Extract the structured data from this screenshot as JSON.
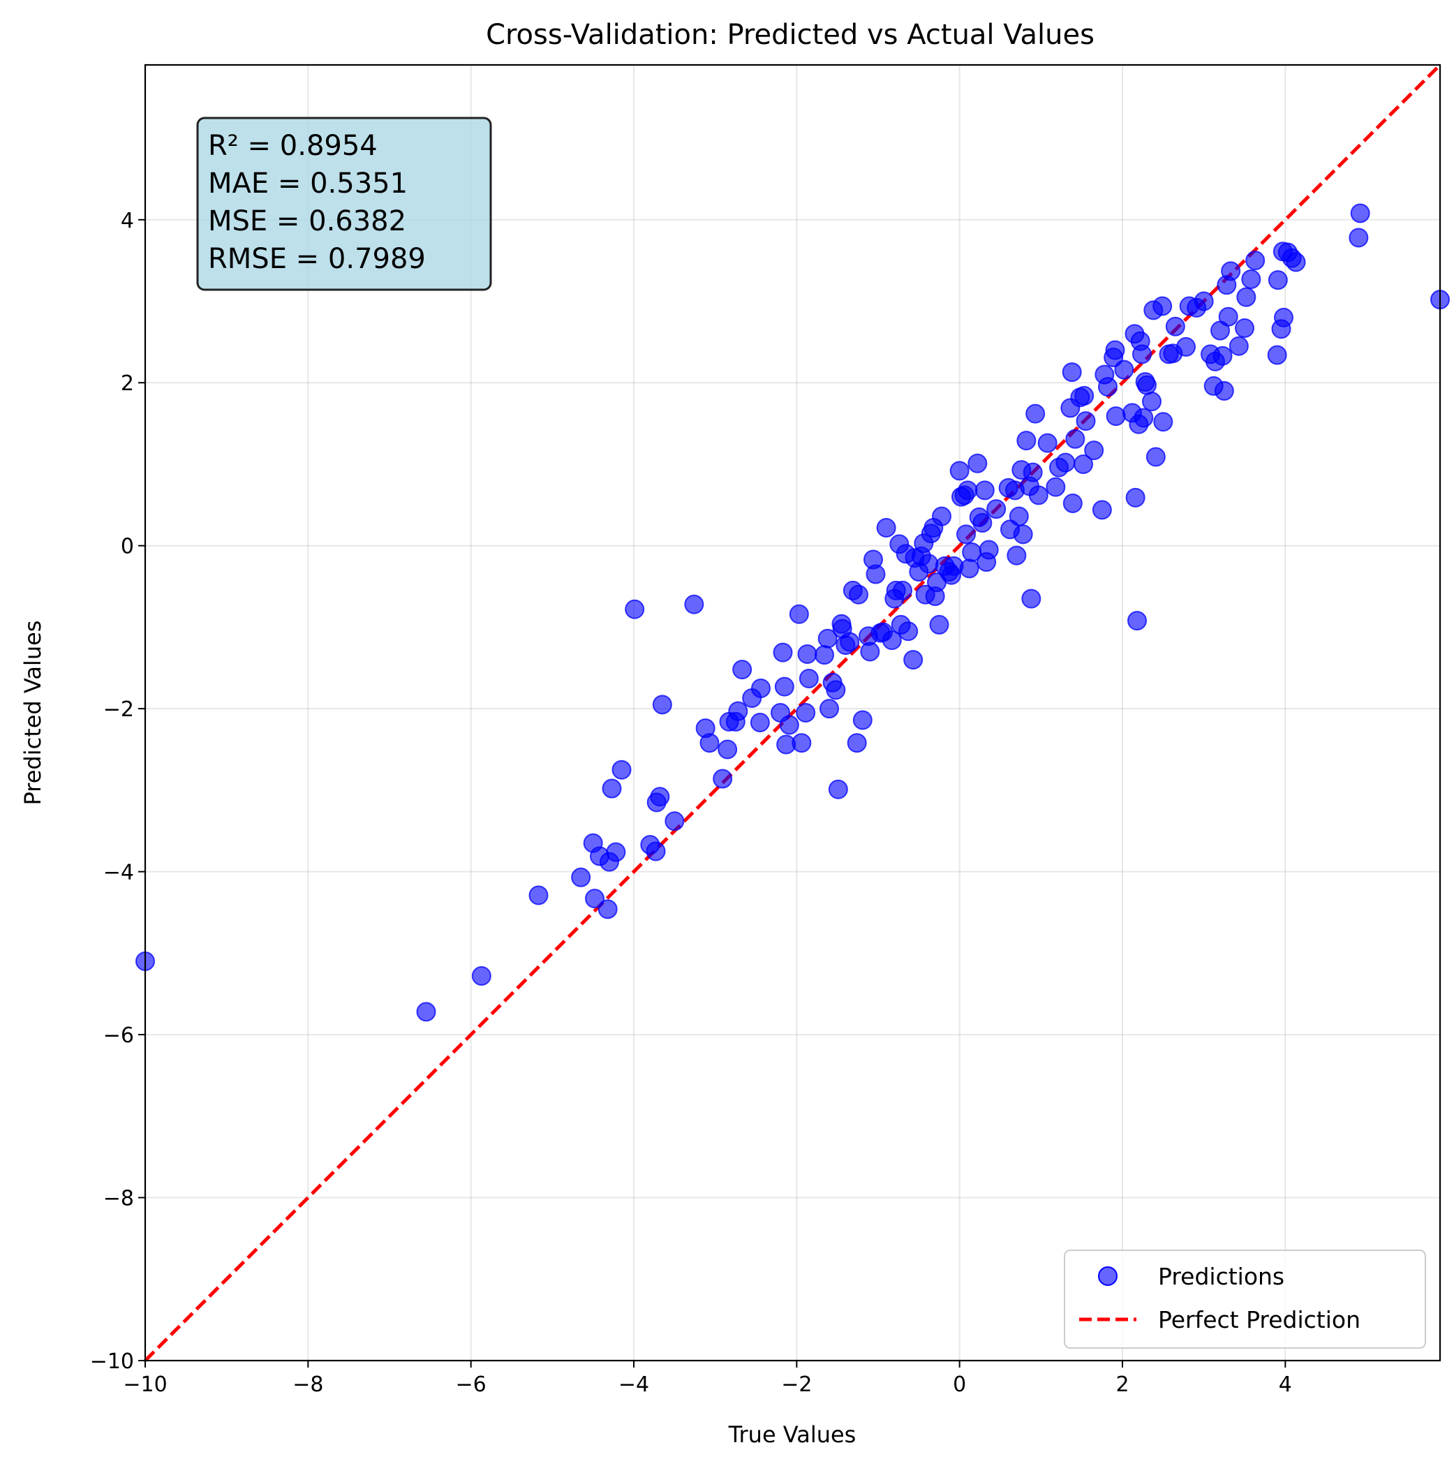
{
  "chart_data": {
    "type": "scatter",
    "title": "Cross-Validation: Predicted vs Actual Values",
    "xlabel": "True Values",
    "ylabel": "Predicted Values",
    "xlim": [
      -10,
      5.9
    ],
    "ylim": [
      -10,
      5.9
    ],
    "xticks": [
      -10,
      -8,
      -6,
      -4,
      -2,
      0,
      2,
      4
    ],
    "yticks": [
      -10,
      -8,
      -6,
      -4,
      -2,
      0,
      2,
      4
    ],
    "x_tick_labels": [
      "−10",
      "−8",
      "−6",
      "−4",
      "−2",
      "0",
      "2",
      "4"
    ],
    "y_tick_labels": [
      "−10",
      "−8",
      "−6",
      "−4",
      "−2",
      "0",
      "2",
      "4"
    ],
    "grid": true,
    "legend_position": "lower-right",
    "stats_box": {
      "lines": [
        "R² = 0.8954",
        "MAE = 0.5351",
        "MSE = 0.6382",
        "RMSE = 0.7989"
      ],
      "background_color": "#add8e6"
    },
    "series": [
      {
        "name": "Predictions",
        "kind": "scatter",
        "color": "#0000ff",
        "alpha": 0.6,
        "points": [
          [
            -10.0,
            -5.1
          ],
          [
            -6.55,
            -5.72
          ],
          [
            -5.87,
            -5.28
          ],
          [
            -5.17,
            -4.29
          ],
          [
            -4.65,
            -4.07
          ],
          [
            -4.5,
            -3.65
          ],
          [
            -4.48,
            -4.33
          ],
          [
            -4.42,
            -3.81
          ],
          [
            -4.32,
            -4.46
          ],
          [
            -4.3,
            -3.88
          ],
          [
            -4.27,
            -2.98
          ],
          [
            -4.22,
            -3.76
          ],
          [
            -4.15,
            -2.75
          ],
          [
            -3.99,
            -0.78
          ],
          [
            -3.8,
            -3.67
          ],
          [
            -3.73,
            -3.75
          ],
          [
            -3.72,
            -3.15
          ],
          [
            -3.68,
            -3.08
          ],
          [
            -3.65,
            -1.95
          ],
          [
            -3.5,
            -3.38
          ],
          [
            -3.26,
            -0.72
          ],
          [
            -3.12,
            -2.24
          ],
          [
            -3.07,
            -2.42
          ],
          [
            -2.91,
            -2.86
          ],
          [
            -2.85,
            -2.5
          ],
          [
            -2.83,
            -2.16
          ],
          [
            -2.75,
            -2.16
          ],
          [
            -2.72,
            -2.03
          ],
          [
            -2.67,
            -1.52
          ],
          [
            -2.55,
            -1.87
          ],
          [
            -2.45,
            -2.17
          ],
          [
            -2.44,
            -1.75
          ],
          [
            -2.2,
            -2.05
          ],
          [
            -2.17,
            -1.31
          ],
          [
            -2.15,
            -1.73
          ],
          [
            -2.13,
            -2.44
          ],
          [
            -2.09,
            -2.2
          ],
          [
            -1.97,
            -0.84
          ],
          [
            -1.94,
            -2.42
          ],
          [
            -1.89,
            -2.05
          ],
          [
            -1.87,
            -1.33
          ],
          [
            -1.85,
            -1.63
          ],
          [
            -1.66,
            -1.34
          ],
          [
            -1.62,
            -1.14
          ],
          [
            -1.6,
            -2.0
          ],
          [
            -1.56,
            -1.68
          ],
          [
            -1.52,
            -1.77
          ],
          [
            -1.49,
            -2.99
          ],
          [
            -1.45,
            -0.96
          ],
          [
            -1.44,
            -1.02
          ],
          [
            -1.4,
            -1.22
          ],
          [
            -1.35,
            -1.18
          ],
          [
            -1.31,
            -0.55
          ],
          [
            -1.24,
            -0.6
          ],
          [
            -1.26,
            -2.42
          ],
          [
            -1.19,
            -2.14
          ],
          [
            -1.12,
            -1.11
          ],
          [
            -1.1,
            -1.3
          ],
          [
            -1.06,
            -0.17
          ],
          [
            -1.03,
            -0.35
          ],
          [
            -0.97,
            -1.07
          ],
          [
            -0.94,
            -1.06
          ],
          [
            -0.9,
            0.22
          ],
          [
            -0.83,
            -1.16
          ],
          [
            -0.8,
            -0.65
          ],
          [
            -0.78,
            -0.55
          ],
          [
            -0.74,
            0.02
          ],
          [
            -0.72,
            -0.97
          ],
          [
            -0.7,
            -0.55
          ],
          [
            -0.66,
            -0.1
          ],
          [
            -0.63,
            -1.05
          ],
          [
            -0.57,
            -1.4
          ],
          [
            -0.55,
            -0.15
          ],
          [
            -0.5,
            -0.32
          ],
          [
            -0.47,
            -0.13
          ],
          [
            -0.44,
            0.03
          ],
          [
            -0.42,
            -0.6
          ],
          [
            -0.38,
            -0.22
          ],
          [
            -0.35,
            0.15
          ],
          [
            -0.32,
            0.22
          ],
          [
            -0.3,
            -0.62
          ],
          [
            -0.28,
            -0.45
          ],
          [
            -0.25,
            -0.97
          ],
          [
            -0.22,
            0.36
          ],
          [
            -0.18,
            -0.25
          ],
          [
            -0.13,
            -0.32
          ],
          [
            -0.1,
            -0.36
          ],
          [
            -0.07,
            -0.25
          ],
          [
            0.0,
            0.92
          ],
          [
            0.02,
            0.6
          ],
          [
            0.06,
            0.62
          ],
          [
            0.08,
            0.14
          ],
          [
            0.1,
            0.68
          ],
          [
            0.12,
            -0.28
          ],
          [
            0.15,
            -0.08
          ],
          [
            0.22,
            1.01
          ],
          [
            0.24,
            0.35
          ],
          [
            0.28,
            0.28
          ],
          [
            0.31,
            0.68
          ],
          [
            0.33,
            -0.2
          ],
          [
            0.36,
            -0.05
          ],
          [
            0.45,
            0.45
          ],
          [
            0.6,
            0.71
          ],
          [
            0.62,
            0.2
          ],
          [
            0.68,
            0.68
          ],
          [
            0.7,
            -0.12
          ],
          [
            0.73,
            0.36
          ],
          [
            0.76,
            0.93
          ],
          [
            0.78,
            0.14
          ],
          [
            0.82,
            1.29
          ],
          [
            0.86,
            0.73
          ],
          [
            0.88,
            -0.65
          ],
          [
            0.9,
            0.9
          ],
          [
            0.93,
            1.62
          ],
          [
            0.97,
            0.62
          ],
          [
            1.08,
            1.26
          ],
          [
            1.18,
            0.72
          ],
          [
            1.22,
            0.96
          ],
          [
            1.3,
            1.02
          ],
          [
            1.36,
            1.69
          ],
          [
            1.38,
            2.13
          ],
          [
            1.39,
            0.52
          ],
          [
            1.42,
            1.31
          ],
          [
            1.48,
            1.82
          ],
          [
            1.53,
            1.84
          ],
          [
            1.52,
            1.0
          ],
          [
            1.55,
            1.53
          ],
          [
            1.65,
            1.17
          ],
          [
            1.75,
            0.44
          ],
          [
            1.78,
            2.1
          ],
          [
            1.82,
            1.95
          ],
          [
            1.89,
            2.31
          ],
          [
            1.91,
            2.4
          ],
          [
            1.92,
            1.59
          ],
          [
            2.02,
            2.16
          ],
          [
            2.12,
            1.63
          ],
          [
            2.15,
            2.6
          ],
          [
            2.16,
            0.59
          ],
          [
            2.18,
            -0.92
          ],
          [
            2.2,
            1.49
          ],
          [
            2.22,
            2.51
          ],
          [
            2.24,
            2.35
          ],
          [
            2.26,
            1.57
          ],
          [
            2.28,
            2.01
          ],
          [
            2.3,
            1.97
          ],
          [
            2.36,
            1.77
          ],
          [
            2.38,
            2.89
          ],
          [
            2.41,
            1.09
          ],
          [
            2.49,
            2.94
          ],
          [
            2.5,
            1.52
          ],
          [
            2.57,
            2.35
          ],
          [
            2.62,
            2.36
          ],
          [
            2.65,
            2.69
          ],
          [
            2.78,
            2.44
          ],
          [
            2.82,
            2.94
          ],
          [
            2.91,
            2.92
          ],
          [
            3.0,
            3.0
          ],
          [
            3.08,
            2.35
          ],
          [
            3.12,
            1.96
          ],
          [
            3.14,
            2.26
          ],
          [
            3.2,
            2.64
          ],
          [
            3.23,
            2.33
          ],
          [
            3.25,
            1.9
          ],
          [
            3.28,
            3.2
          ],
          [
            3.3,
            2.81
          ],
          [
            3.33,
            3.37
          ],
          [
            3.43,
            2.45
          ],
          [
            3.5,
            2.67
          ],
          [
            3.52,
            3.05
          ],
          [
            3.58,
            3.27
          ],
          [
            3.63,
            3.5
          ],
          [
            3.9,
            2.34
          ],
          [
            3.91,
            3.26
          ],
          [
            3.95,
            2.66
          ],
          [
            3.97,
            3.61
          ],
          [
            3.98,
            2.8
          ],
          [
            4.03,
            3.6
          ],
          [
            4.08,
            3.53
          ],
          [
            4.13,
            3.48
          ],
          [
            4.9,
            3.78
          ],
          [
            4.92,
            4.08
          ],
          [
            5.9,
            3.02
          ]
        ]
      },
      {
        "name": "Perfect Prediction",
        "kind": "line",
        "color": "#ff0000",
        "style": "dashed",
        "points": [
          [
            -10,
            -10
          ],
          [
            5.9,
            5.9
          ]
        ]
      }
    ]
  }
}
